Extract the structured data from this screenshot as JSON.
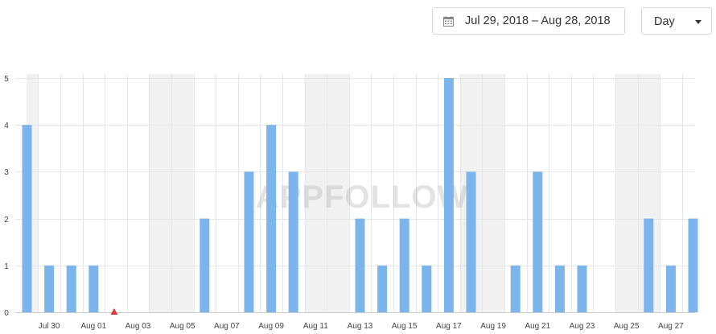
{
  "controls": {
    "date_range": "Jul 29, 2018 – Aug 28, 2018",
    "period": "Day",
    "calendar_icon": "calendar-icon",
    "dropdown_icon": "chevron-down-icon"
  },
  "watermark": "APPFOLLOW",
  "colors": {
    "bar": "#7cb5ec",
    "weekend_band": "#f1f1f1",
    "grid": "#e6e6e6",
    "marker": "#d9383f"
  },
  "chart_data": {
    "type": "bar",
    "title": "",
    "xlabel": "",
    "ylabel": "",
    "ylim": [
      0,
      5
    ],
    "yticks": [
      0,
      1,
      2,
      3,
      4,
      5
    ],
    "grid": true,
    "categories": [
      "Jul 29",
      "Jul 30",
      "Jul 31",
      "Aug 01",
      "Aug 02",
      "Aug 03",
      "Aug 04",
      "Aug 05",
      "Aug 06",
      "Aug 07",
      "Aug 08",
      "Aug 09",
      "Aug 10",
      "Aug 11",
      "Aug 12",
      "Aug 13",
      "Aug 14",
      "Aug 15",
      "Aug 16",
      "Aug 17",
      "Aug 18",
      "Aug 19",
      "Aug 20",
      "Aug 21",
      "Aug 22",
      "Aug 23",
      "Aug 24",
      "Aug 25",
      "Aug 26",
      "Aug 27",
      "Aug 28"
    ],
    "values": [
      4,
      1,
      1,
      1,
      0,
      0,
      0,
      0,
      2,
      0,
      3,
      4,
      3,
      0,
      0,
      2,
      1,
      2,
      1,
      5,
      3,
      0,
      1,
      3,
      1,
      1,
      0,
      0,
      2,
      1,
      2
    ],
    "x_tick_labels": [
      "Jul 30",
      "Aug 01",
      "Aug 03",
      "Aug 05",
      "Aug 07",
      "Aug 09",
      "Aug 11",
      "Aug 13",
      "Aug 15",
      "Aug 17",
      "Aug 19",
      "Aug 21",
      "Aug 23",
      "Aug 25",
      "Aug 27"
    ],
    "weekend_bands": [
      [
        "Jul 29",
        "Jul 29"
      ],
      [
        "Aug 04",
        "Aug 05"
      ],
      [
        "Aug 11",
        "Aug 12"
      ],
      [
        "Aug 18",
        "Aug 19"
      ],
      [
        "Aug 25",
        "Aug 26"
      ]
    ],
    "event_markers": [
      "Aug 02"
    ]
  }
}
